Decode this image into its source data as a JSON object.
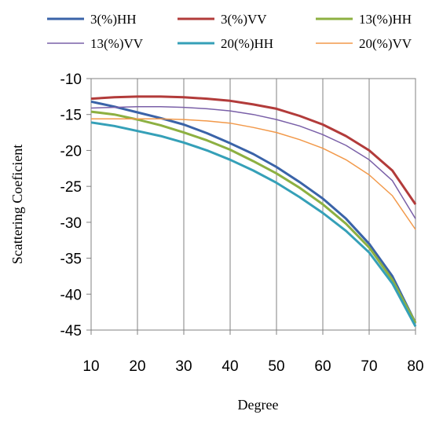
{
  "chart_data": {
    "type": "line",
    "title": "",
    "xlabel": "Degree",
    "ylabel": "Scattering Coeficient",
    "xlim": [
      10,
      80
    ],
    "ylim": [
      -45,
      -10
    ],
    "x_ticks": [
      10,
      20,
      30,
      40,
      50,
      60,
      70,
      80
    ],
    "y_ticks": [
      -10,
      -15,
      -20,
      -25,
      -30,
      -35,
      -40,
      -45
    ],
    "grid": "vertical",
    "legend_position": "top",
    "x": [
      10,
      15,
      20,
      25,
      30,
      35,
      40,
      45,
      50,
      55,
      60,
      65,
      70,
      75,
      80
    ],
    "series": [
      {
        "name": "3(%)HH",
        "color": "#3a63a8",
        "values": [
          -13.2,
          -13.9,
          -14.7,
          -15.5,
          -16.4,
          -17.6,
          -19.0,
          -20.5,
          -22.3,
          -24.4,
          -26.7,
          -29.5,
          -33.0,
          -37.5,
          -44.0
        ]
      },
      {
        "name": "3(%)VV",
        "color": "#b23b3a",
        "values": [
          -12.8,
          -12.6,
          -12.5,
          -12.5,
          -12.6,
          -12.8,
          -13.1,
          -13.6,
          -14.2,
          -15.2,
          -16.4,
          -18.0,
          -20.0,
          -22.8,
          -27.5
        ]
      },
      {
        "name": "13(%)HH",
        "color": "#8db041",
        "values": [
          -14.6,
          -15.0,
          -15.7,
          -16.5,
          -17.5,
          -18.6,
          -19.9,
          -21.5,
          -23.2,
          -25.2,
          -27.5,
          -30.2,
          -33.5,
          -38.0,
          -44.0
        ]
      },
      {
        "name": "13(%)VV",
        "color": "#7a60a8",
        "values": [
          -14.1,
          -14.0,
          -13.9,
          -13.9,
          -14.0,
          -14.2,
          -14.5,
          -15.0,
          -15.7,
          -16.6,
          -17.8,
          -19.3,
          -21.3,
          -24.2,
          -29.5
        ]
      },
      {
        "name": "20(%)HH",
        "color": "#35a0b8",
        "values": [
          -16.1,
          -16.6,
          -17.3,
          -18.0,
          -18.9,
          -20.0,
          -21.3,
          -22.8,
          -24.5,
          -26.5,
          -28.7,
          -31.2,
          -34.2,
          -38.5,
          -44.5
        ]
      },
      {
        "name": "20(%)VV",
        "color": "#f2994a",
        "values": [
          -15.6,
          -15.6,
          -15.6,
          -15.6,
          -15.7,
          -15.9,
          -16.2,
          -16.8,
          -17.5,
          -18.5,
          -19.7,
          -21.3,
          -23.4,
          -26.3,
          -31.0
        ]
      }
    ]
  }
}
